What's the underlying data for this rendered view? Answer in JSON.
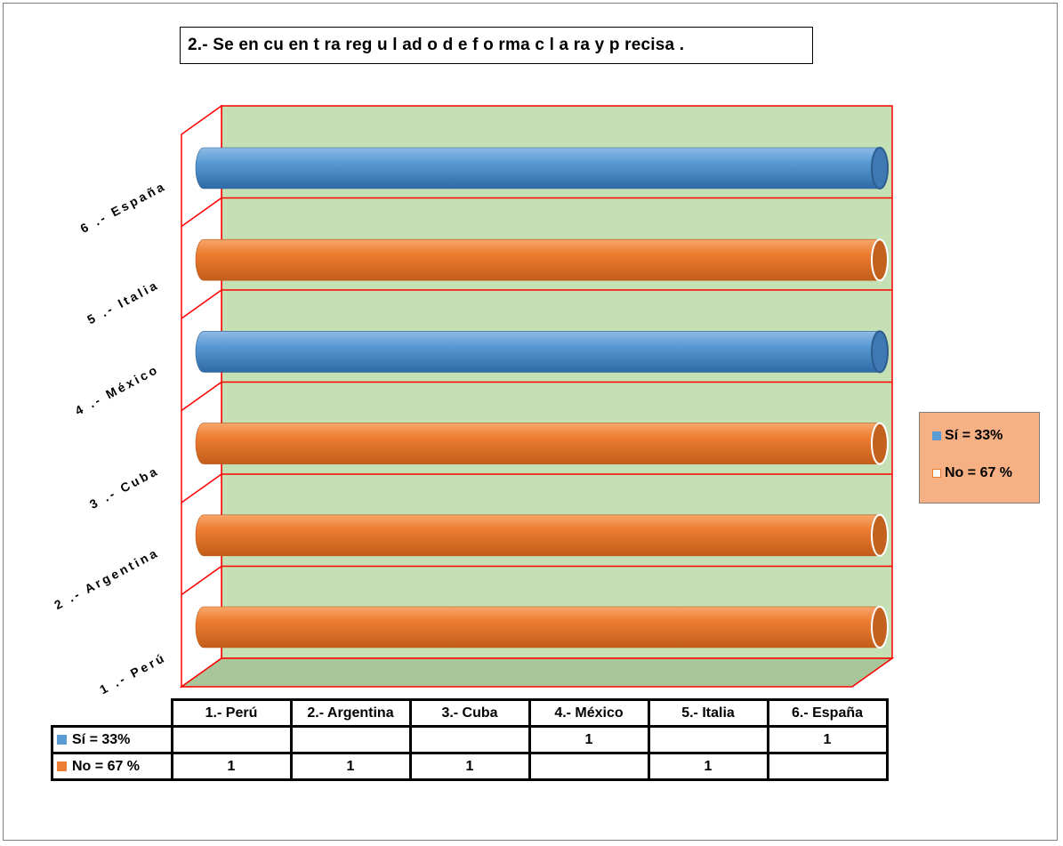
{
  "chart_data": {
    "type": "bar",
    "orientation": "horizontal",
    "title": "2.- Se en cu en t ra reg u l ad o d e f o rma c l a ra y p recisa .",
    "categories": [
      "1.- Perú",
      "2.- Argentina",
      "3.- Cuba",
      "4.- México",
      "5.- Italia",
      "6.- España"
    ],
    "axis_categories": [
      "1 .- Perú",
      "2 .- Argentina",
      "3 .- Cuba",
      "4 .- México",
      "5 .- Italia",
      "6 .- España"
    ],
    "series": [
      {
        "name": "Sí = 33%",
        "color": "#5b9bd5",
        "values": [
          null,
          null,
          null,
          1,
          null,
          1
        ]
      },
      {
        "name": "No = 67 %",
        "color": "#ed7d31",
        "values": [
          1,
          1,
          1,
          null,
          1,
          null
        ]
      }
    ],
    "xlim": [
      0,
      1
    ],
    "grid": true,
    "legend_position": "right",
    "wall_color": "#c5e0b4",
    "floor_color": "#a9c69a",
    "grid_color": "#ff0000",
    "data_table": {
      "headers": [
        "1.- Perú",
        "2.- Argentina",
        "3.- Cuba",
        "4.- México",
        "5.- Italia",
        "6.- España"
      ],
      "rows": [
        {
          "label": "Sí = 33%",
          "cells": [
            "",
            "",
            "",
            "1",
            "",
            "1"
          ]
        },
        {
          "label": "No = 67 %",
          "cells": [
            "1",
            "1",
            "1",
            "",
            "1",
            ""
          ]
        }
      ]
    }
  }
}
